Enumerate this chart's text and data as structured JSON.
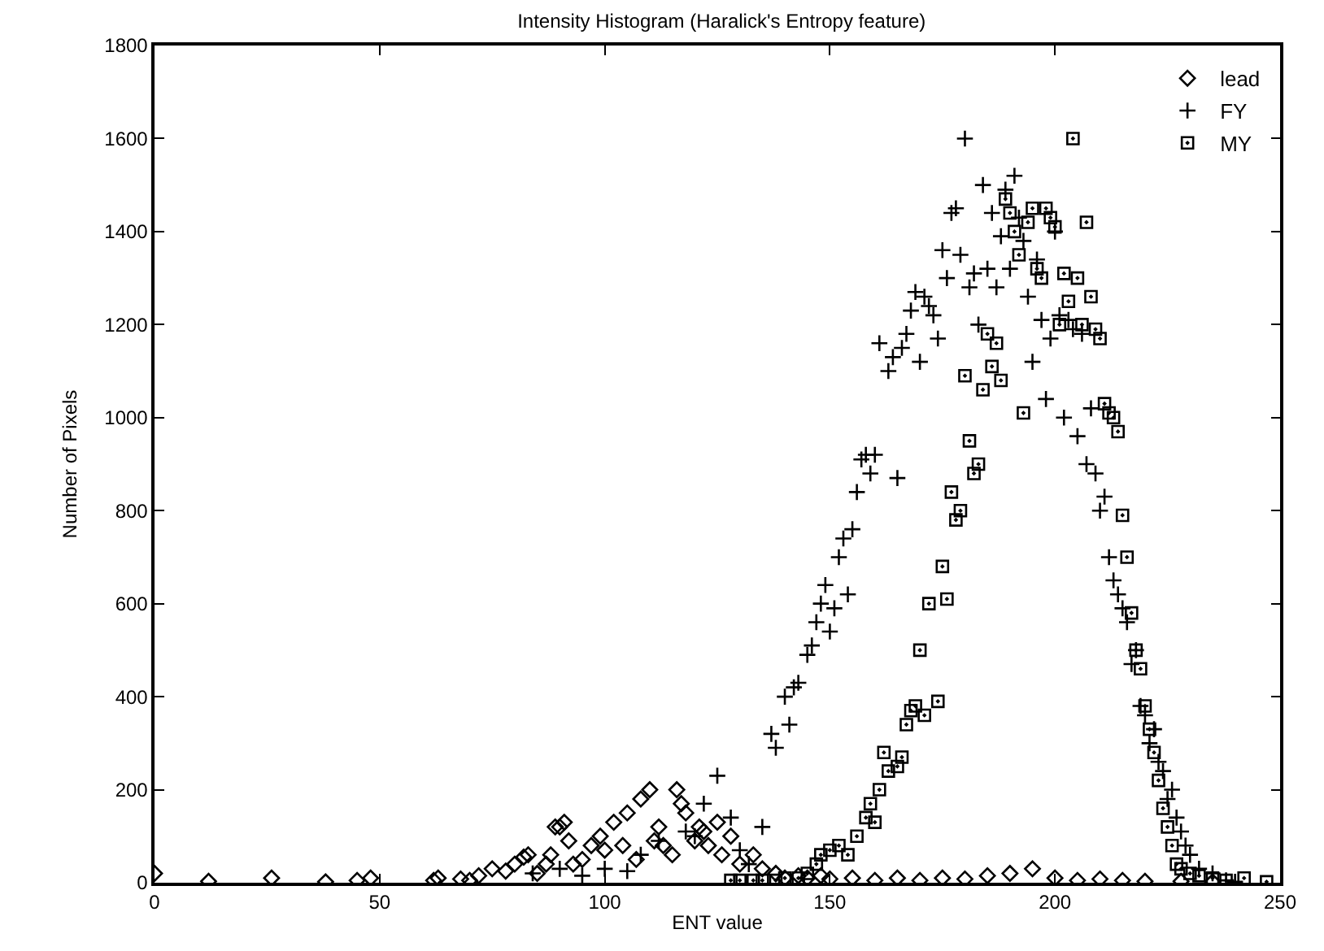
{
  "chart_data": {
    "type": "scatter",
    "title": "Intensity Histogram (Haralick's Entropy feature)",
    "xlabel": "ENT value",
    "ylabel": "Number of Pixels",
    "xlim": [
      0,
      250
    ],
    "xticks": [
      0,
      50,
      100,
      150,
      200,
      250
    ],
    "ylim": [
      0,
      1800
    ],
    "yticks": [
      0,
      200,
      400,
      600,
      800,
      1000,
      1200,
      1400,
      1600,
      1800
    ],
    "grid": false,
    "legend": "top right",
    "series": [
      {
        "name": "lead",
        "color": "#000000",
        "marker": "diamond",
        "x": [
          0,
          12,
          26,
          38,
          45,
          48,
          62,
          63,
          68,
          70,
          72,
          75,
          78,
          80,
          82,
          83,
          85,
          87,
          88,
          89,
          90,
          91,
          92,
          93,
          95,
          97,
          99,
          100,
          102,
          104,
          105,
          107,
          108,
          110,
          111,
          112,
          113,
          115,
          116,
          117,
          118,
          120,
          121,
          122,
          123,
          125,
          126,
          128,
          130,
          133,
          135,
          138,
          140,
          143,
          145,
          148,
          150,
          155,
          160,
          165,
          170,
          175,
          180,
          185,
          190,
          195,
          200,
          205,
          210,
          215,
          220,
          228,
          235
        ],
        "values": [
          20,
          3,
          10,
          2,
          5,
          10,
          5,
          10,
          8,
          5,
          15,
          30,
          25,
          40,
          55,
          60,
          20,
          40,
          60,
          120,
          120,
          130,
          90,
          40,
          50,
          80,
          100,
          70,
          130,
          80,
          150,
          50,
          180,
          200,
          90,
          120,
          80,
          60,
          200,
          170,
          150,
          90,
          120,
          110,
          80,
          130,
          60,
          100,
          40,
          60,
          30,
          20,
          10,
          15,
          10,
          15,
          8,
          10,
          5,
          10,
          5,
          10,
          8,
          15,
          20,
          30,
          10,
          5,
          8,
          5,
          3,
          3,
          2
        ]
      },
      {
        "name": "FY",
        "color": "#000000",
        "marker": "cross",
        "x": [
          84,
          90,
          95,
          100,
          105,
          108,
          112,
          118,
          120,
          122,
          125,
          128,
          130,
          132,
          135,
          137,
          138,
          140,
          141,
          142,
          143,
          145,
          146,
          147,
          148,
          149,
          150,
          151,
          152,
          153,
          154,
          155,
          156,
          157,
          158,
          159,
          160,
          161,
          163,
          164,
          165,
          166,
          167,
          168,
          169,
          170,
          171,
          172,
          173,
          174,
          175,
          176,
          177,
          178,
          179,
          180,
          181,
          182,
          183,
          184,
          185,
          186,
          187,
          188,
          189,
          190,
          191,
          192,
          193,
          194,
          195,
          196,
          197,
          198,
          199,
          200,
          201,
          202,
          203,
          204,
          205,
          206,
          207,
          208,
          209,
          210,
          211,
          212,
          213,
          214,
          215,
          216,
          217,
          218,
          219,
          220,
          221,
          222,
          223,
          224,
          225,
          226,
          227,
          228,
          229,
          230,
          232,
          235,
          238,
          240
        ],
        "values": [
          20,
          30,
          15,
          30,
          25,
          60,
          90,
          110,
          100,
          170,
          230,
          140,
          70,
          40,
          120,
          320,
          290,
          400,
          340,
          420,
          430,
          490,
          510,
          560,
          600,
          640,
          540,
          590,
          700,
          740,
          620,
          760,
          840,
          910,
          920,
          880,
          920,
          1160,
          1100,
          1130,
          870,
          1150,
          1180,
          1230,
          1270,
          1120,
          1260,
          1240,
          1220,
          1170,
          1360,
          1300,
          1440,
          1450,
          1350,
          1600,
          1280,
          1310,
          1200,
          1500,
          1320,
          1440,
          1280,
          1390,
          1490,
          1320,
          1520,
          1430,
          1380,
          1260,
          1120,
          1340,
          1210,
          1040,
          1170,
          1400,
          1220,
          1000,
          1210,
          1190,
          960,
          1180,
          900,
          1020,
          880,
          800,
          830,
          700,
          650,
          620,
          590,
          560,
          470,
          500,
          380,
          360,
          300,
          330,
          260,
          240,
          180,
          200,
          140,
          110,
          80,
          60,
          30,
          20,
          5,
          2
        ]
      },
      {
        "name": "MY",
        "color": "#000000",
        "marker": "square",
        "x": [
          128,
          130,
          133,
          135,
          138,
          140,
          143,
          145,
          147,
          148,
          150,
          152,
          154,
          156,
          158,
          159,
          160,
          161,
          162,
          163,
          165,
          166,
          167,
          168,
          169,
          170,
          171,
          172,
          174,
          175,
          176,
          177,
          178,
          179,
          180,
          181,
          182,
          183,
          184,
          185,
          186,
          187,
          188,
          189,
          190,
          191,
          192,
          193,
          194,
          195,
          196,
          197,
          198,
          199,
          200,
          201,
          202,
          203,
          204,
          205,
          206,
          207,
          208,
          209,
          210,
          211,
          212,
          213,
          214,
          215,
          216,
          217,
          218,
          219,
          220,
          221,
          222,
          223,
          224,
          225,
          226,
          227,
          228,
          230,
          232,
          235,
          238,
          242,
          247
        ],
        "values": [
          5,
          5,
          5,
          5,
          5,
          10,
          10,
          20,
          40,
          60,
          70,
          80,
          60,
          100,
          140,
          170,
          130,
          200,
          280,
          240,
          250,
          270,
          340,
          370,
          380,
          500,
          360,
          600,
          390,
          680,
          610,
          840,
          780,
          800,
          1090,
          950,
          880,
          900,
          1060,
          1180,
          1110,
          1160,
          1080,
          1470,
          1440,
          1400,
          1350,
          1010,
          1420,
          1450,
          1320,
          1300,
          1450,
          1430,
          1410,
          1200,
          1310,
          1250,
          1600,
          1300,
          1200,
          1420,
          1260,
          1190,
          1170,
          1030,
          1010,
          1000,
          970,
          790,
          700,
          580,
          500,
          460,
          380,
          330,
          280,
          220,
          160,
          120,
          80,
          40,
          30,
          20,
          15,
          10,
          5,
          10,
          2
        ]
      }
    ]
  }
}
